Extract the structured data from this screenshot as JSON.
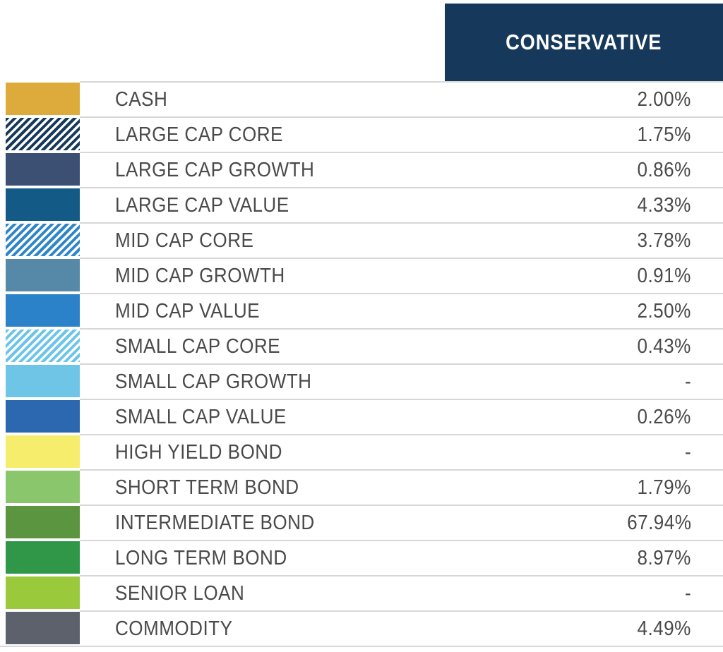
{
  "header": {
    "label": "CONSERVATIVE",
    "bg_color": "#16395B",
    "text_color": "#FFFFFF"
  },
  "table": {
    "rows": [
      {
        "label": "CASH",
        "value": "2.00%",
        "swatch": {
          "type": "solid",
          "color": "#DCAB3C"
        }
      },
      {
        "label": "LARGE CAP CORE",
        "value": "1.75%",
        "swatch": {
          "type": "hatch",
          "color": "#16395B"
        }
      },
      {
        "label": "LARGE CAP GROWTH",
        "value": "0.86%",
        "swatch": {
          "type": "solid",
          "color": "#3C5074"
        }
      },
      {
        "label": "LARGE CAP VALUE",
        "value": "4.33%",
        "swatch": {
          "type": "solid",
          "color": "#135B86"
        }
      },
      {
        "label": "MID CAP CORE",
        "value": "3.78%",
        "swatch": {
          "type": "hatch",
          "color": "#2E86C8"
        }
      },
      {
        "label": "MID CAP GROWTH",
        "value": "0.91%",
        "swatch": {
          "type": "solid",
          "color": "#5689A8"
        }
      },
      {
        "label": "MID CAP VALUE",
        "value": "2.50%",
        "swatch": {
          "type": "solid",
          "color": "#2C82C9"
        }
      },
      {
        "label": "SMALL CAP CORE",
        "value": "0.43%",
        "swatch": {
          "type": "hatch",
          "color": "#6CC4E8"
        }
      },
      {
        "label": "SMALL CAP GROWTH",
        "value": "-",
        "swatch": {
          "type": "solid",
          "color": "#6FC5E6"
        }
      },
      {
        "label": "SMALL CAP VALUE",
        "value": "0.26%",
        "swatch": {
          "type": "solid",
          "color": "#2C68B0"
        }
      },
      {
        "label": "HIGH YIELD BOND",
        "value": "-",
        "swatch": {
          "type": "solid",
          "color": "#F6ED6C"
        }
      },
      {
        "label": "SHORT TERM BOND",
        "value": "1.79%",
        "swatch": {
          "type": "solid",
          "color": "#8AC76C"
        }
      },
      {
        "label": "INTERMEDIATE BOND",
        "value": "67.94%",
        "swatch": {
          "type": "solid",
          "color": "#5C9540"
        }
      },
      {
        "label": "LONG TERM BOND",
        "value": "8.97%",
        "swatch": {
          "type": "solid",
          "color": "#2F9747"
        }
      },
      {
        "label": "SENIOR LOAN",
        "value": "-",
        "swatch": {
          "type": "solid",
          "color": "#9ACA3C"
        }
      },
      {
        "label": "COMMODITY",
        "value": "4.49%",
        "swatch": {
          "type": "solid",
          "color": "#5C616B"
        }
      }
    ]
  },
  "chart_data": {
    "type": "table",
    "title": "CONSERVATIVE",
    "categories": [
      "CASH",
      "LARGE CAP CORE",
      "LARGE CAP GROWTH",
      "LARGE CAP VALUE",
      "MID CAP CORE",
      "MID CAP GROWTH",
      "MID CAP VALUE",
      "SMALL CAP CORE",
      "SMALL CAP GROWTH",
      "SMALL CAP VALUE",
      "HIGH YIELD BOND",
      "SHORT TERM BOND",
      "INTERMEDIATE BOND",
      "LONG TERM BOND",
      "SENIOR LOAN",
      "COMMODITY"
    ],
    "series": [
      {
        "name": "CONSERVATIVE",
        "values": [
          2.0,
          1.75,
          0.86,
          4.33,
          3.78,
          0.91,
          2.5,
          0.43,
          null,
          0.26,
          null,
          1.79,
          67.94,
          8.97,
          null,
          4.49
        ]
      }
    ],
    "value_unit": "%",
    "missing_value_display": "-",
    "legend_position": "left"
  }
}
